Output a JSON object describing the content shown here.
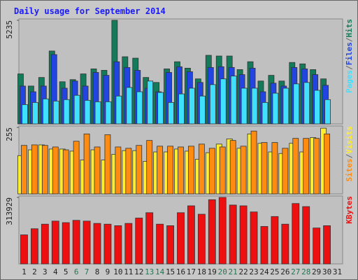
{
  "title": "Daily usage for September 2014",
  "categories": [
    "1",
    "2",
    "3",
    "4",
    "5",
    "6",
    "7",
    "8",
    "9",
    "10",
    "11",
    "12",
    "13",
    "14",
    "15",
    "16",
    "17",
    "18",
    "19",
    "20",
    "21",
    "22",
    "23",
    "24",
    "25",
    "26",
    "27",
    "28",
    "29",
    "30",
    "31"
  ],
  "category_colors": [
    "#222222",
    "#222222",
    "#222222",
    "#222222",
    "#222222",
    "#227755",
    "#227755",
    "#222222",
    "#222222",
    "#222222",
    "#222222",
    "#222222",
    "#227755",
    "#227755",
    "#222222",
    "#222222",
    "#222222",
    "#222222",
    "#222222",
    "#227755",
    "#227755",
    "#222222",
    "#222222",
    "#222222",
    "#222222",
    "#222222",
    "#227755",
    "#227755",
    "#222222",
    "#222222",
    "#222222"
  ],
  "legend_separator": "/",
  "chart_data": [
    {
      "type": "bar",
      "ylim": [
        0,
        5235
      ],
      "yticks": [
        5235
      ],
      "series": [
        {
          "name": "Pages",
          "color": "#40e0ff",
          "values": [
            975,
            1083,
            1264,
            1155,
            1228,
            1444,
            1191,
            1119,
            1119,
            1408,
            1841,
            1625,
            2166,
            1589,
            1083,
            1516,
            1805,
            1408,
            1986,
            2275,
            2419,
            1805,
            1805,
            1083,
            1552,
            1805,
            2022,
            2094,
            1697,
            1228,
            null
          ]
        },
        {
          "name": "Files",
          "color": "#2244e0",
          "values": [
            1913,
            1625,
            1913,
            3502,
            1805,
            2166,
            1913,
            2600,
            2455,
            3141,
            2852,
            2708,
            1805,
            1625,
            2600,
            2888,
            2636,
            2094,
            2852,
            2888,
            2852,
            2491,
            2816,
            1625,
            2058,
            1913,
            2852,
            2780,
            2491,
            1950,
            null
          ]
        },
        {
          "name": "Hits",
          "color": "#137a5a",
          "values": [
            2527,
            1913,
            2347,
            3683,
            2130,
            2238,
            2527,
            2780,
            2708,
            5235,
            3394,
            3322,
            2347,
            2094,
            2780,
            3141,
            2816,
            2275,
            3466,
            3430,
            3430,
            2744,
            3141,
            2166,
            2455,
            2166,
            3105,
            3033,
            2744,
            2275,
            null
          ]
        }
      ]
    },
    {
      "type": "bar",
      "ylim": [
        0,
        255
      ],
      "yticks": [
        255
      ],
      "series": [
        {
          "name": "Sites",
          "color": "#ff8c10",
          "values": [
            186,
            188,
            186,
            180,
            169,
            202,
            230,
            180,
            227,
            180,
            175,
            186,
            205,
            183,
            183,
            180,
            183,
            191,
            175,
            180,
            205,
            183,
            241,
            197,
            197,
            175,
            213,
            213,
            213,
            230,
            null
          ]
        },
        {
          "name": "Visits",
          "color": "#ffee30",
          "values": [
            147,
            169,
            188,
            172,
            172,
            164,
            130,
            169,
            130,
            152,
            166,
            166,
            125,
            161,
            161,
            172,
            164,
            133,
            158,
            191,
            211,
            175,
            230,
            194,
            161,
            155,
            194,
            161,
            216,
            252,
            null
          ]
        }
      ]
    },
    {
      "type": "bar",
      "ylim": [
        0,
        313929
      ],
      "yticks": [
        313929
      ],
      "series": [
        {
          "name": "KBytes",
          "color": "#ee1010",
          "values": [
            137117,
            165984,
            187636,
            202070,
            194853,
            205678,
            202070,
            191245,
            187636,
            180419,
            191245,
            216503,
            241762,
            187636,
            180419,
            241762,
            274237,
            234545,
            303104,
            313929,
            277846,
            274237,
            245370,
            176811,
            223720,
            187636,
            285062,
            270628,
            169595,
            180419,
            null
          ]
        }
      ]
    }
  ]
}
